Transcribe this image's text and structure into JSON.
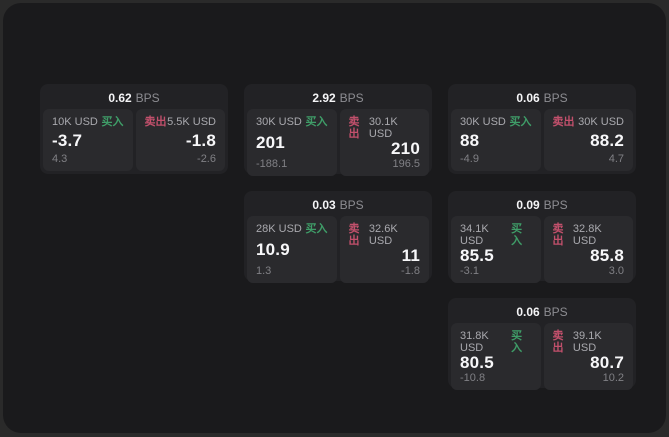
{
  "labels": {
    "bps": "BPS",
    "buy": "买入",
    "sell": "卖出"
  },
  "colors": {
    "buy_green": "#3f9d68",
    "sell_red": "#c2506c",
    "panel_bg": "#1a1a1c",
    "card_bg": "#222225",
    "tile_bg": "#2a2a2d"
  },
  "cards": [
    {
      "bps": "0.62",
      "buy": {
        "amount": "10K USD",
        "price": "-3.7",
        "change": "4.3"
      },
      "sell": {
        "amount": "5.5K USD",
        "price": "-1.8",
        "change": "-2.6"
      }
    },
    {
      "bps": "2.92",
      "buy": {
        "amount": "30K USD",
        "price": "201",
        "change": "-188.1"
      },
      "sell": {
        "amount": "30.1K USD",
        "price": "210",
        "change": "196.5"
      }
    },
    {
      "bps": "0.06",
      "buy": {
        "amount": "30K USD",
        "price": "88",
        "change": "-4.9"
      },
      "sell": {
        "amount": "30K USD",
        "price": "88.2",
        "change": "4.7"
      }
    },
    {
      "bps": "0.03",
      "buy": {
        "amount": "28K USD",
        "price": "10.9",
        "change": "1.3"
      },
      "sell": {
        "amount": "32.6K USD",
        "price": "11",
        "change": "-1.8"
      }
    },
    {
      "bps": "0.09",
      "buy": {
        "amount": "34.1K USD",
        "price": "85.5",
        "change": "-3.1"
      },
      "sell": {
        "amount": "32.8K USD",
        "price": "85.8",
        "change": "3.0"
      }
    },
    {
      "bps": "0.06",
      "buy": {
        "amount": "31.8K USD",
        "price": "80.5",
        "change": "-10.8"
      },
      "sell": {
        "amount": "39.1K USD",
        "price": "80.7",
        "change": "10.2"
      }
    }
  ]
}
